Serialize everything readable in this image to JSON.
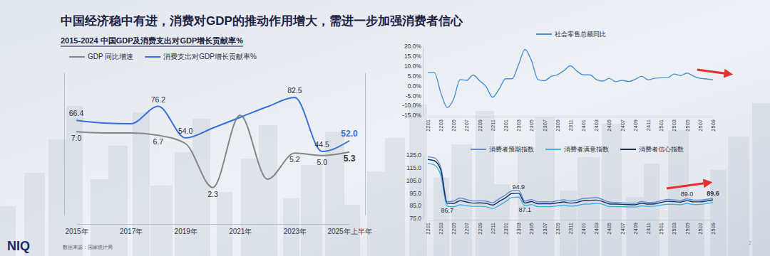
{
  "title": "中国经济稳中有进，消费对GDP的推动作用增大，需进一步加强消费者信心",
  "footer": {
    "logo": "NIQ",
    "source": "数据来源：国家统计局",
    "page": "2"
  },
  "chart_data": [
    {
      "type": "line",
      "title": "2015-2024 中国GDP及消费支出对GDP增长贡献率%",
      "categories": [
        "2015年",
        null,
        "2017年",
        null,
        "2019年",
        null,
        "2021年",
        null,
        "2023年",
        null,
        "2025年上半年"
      ],
      "series": [
        {
          "name": "GDP 同比增速",
          "color": "#858585",
          "values": [
            7.0,
            6.9,
            6.9,
            6.7,
            6.0,
            2.3,
            8.4,
            3.0,
            5.2,
            5.0,
            5.3
          ],
          "value_labels": [
            "7.0",
            null,
            null,
            "6.7",
            null,
            "2.3",
            null,
            null,
            "5.2",
            "5.0",
            "5.3"
          ]
        },
        {
          "name": "消费支出对GDP增长贡献率%",
          "color": "#3a6fdc",
          "axis": "y2",
          "values": [
            66.4,
            64.5,
            64.0,
            76.2,
            54.0,
            61.0,
            68.5,
            76.0,
            82.5,
            44.5,
            52.0
          ],
          "value_labels": [
            "66.4",
            null,
            null,
            "76.2",
            "54.0",
            null,
            null,
            null,
            "82.5",
            "44.5",
            "52.0"
          ]
        }
      ],
      "ylim": [
        0,
        12
      ],
      "y2lim": [
        0,
        100
      ],
      "tick_labels": "x",
      "data_labels": true,
      "legend": "top-left",
      "grid": false
    },
    {
      "type": "line",
      "categories": [
        "2201",
        null,
        "2203",
        null,
        "2205",
        null,
        "2207",
        null,
        "2209",
        null,
        "2211",
        null,
        "2301",
        null,
        "2303",
        null,
        "2305",
        null,
        "2307",
        null,
        "2309",
        null,
        "2311",
        null,
        "2401",
        null,
        "2403",
        null,
        "2405",
        null,
        "2407",
        null,
        "2409",
        null,
        "2411",
        null,
        "2501",
        null,
        "2503",
        null,
        "2505",
        null,
        "2507",
        null,
        "2509"
      ],
      "series": [
        {
          "name": "社会零售总额同比",
          "color": "#4a8fd8",
          "values": [
            6.7,
            6.7,
            -3.5,
            -11.1,
            -6.7,
            3.1,
            2.7,
            5.4,
            2.5,
            -0.5,
            -5.9,
            -1.8,
            3.5,
            3.5,
            10.6,
            18.4,
            12.7,
            3.1,
            2.5,
            4.6,
            5.5,
            7.6,
            10.1,
            7.4,
            5.5,
            5.5,
            3.1,
            2.3,
            3.7,
            2.0,
            2.7,
            2.1,
            3.2,
            4.8,
            3.0,
            3.7,
            4.0,
            4.0,
            5.9,
            5.1,
            6.4,
            4.8,
            3.7,
            3.4,
            3.0
          ]
        }
      ],
      "ylim": [
        -15,
        20
      ],
      "yticks": [
        {
          "value": 20,
          "label": "20.0%"
        },
        {
          "value": 15,
          "label": "15.0%"
        },
        {
          "value": 10,
          "label": "10.0%"
        },
        {
          "value": 5,
          "label": "5.0%"
        },
        {
          "value": 0,
          "label": "0.0%"
        },
        {
          "value": -5,
          "label": "-5.0%"
        },
        {
          "value": -10,
          "label": "-10.0%"
        },
        {
          "value": -15,
          "label": "-15.0%"
        }
      ],
      "legend": "top",
      "grid": false
    },
    {
      "type": "line",
      "categories": [
        "2201",
        null,
        "2203",
        null,
        "2205",
        null,
        "2207",
        null,
        "2209",
        null,
        "2211",
        null,
        "2301",
        null,
        "2303",
        null,
        "2305",
        null,
        "2307",
        null,
        "2309",
        null,
        "2311",
        null,
        "2401",
        null,
        "2403",
        null,
        "2405",
        null,
        "2407",
        null,
        "2409",
        null,
        "2411",
        null,
        "2501",
        null,
        "2503",
        null,
        "2505",
        null,
        "2507",
        null,
        "2509"
      ],
      "series": [
        {
          "name": "消费者预期指数",
          "color": "#5a8fd6",
          "values": [
            123.5,
            122.8,
            115.6,
            88.1,
            88.6,
            91.0,
            89.8,
            88.7,
            89.0,
            88.5,
            87.3,
            90.4,
            93.4,
            96.8,
            97.1,
            88.6,
            89.8,
            88.0,
            88.1,
            88.0,
            88.9,
            89.6,
            88.7,
            89.3,
            90.7,
            91.0,
            91.4,
            89.8,
            87.8,
            87.5,
            87.3,
            87.0,
            86.9,
            88.3,
            87.4,
            87.6,
            88.9,
            89.9,
            89.6,
            89.1,
            90.4,
            89.4,
            89.3,
            90.0,
            90.9
          ]
        },
        {
          "name": "消费者满意指数",
          "color": "#3fb0e6",
          "values": [
            118.5,
            117.2,
            109.2,
            84.5,
            84.1,
            85.7,
            85.0,
            84.5,
            84.5,
            84.2,
            82.7,
            85.2,
            88.1,
            91.5,
            91.7,
            84.9,
            85.9,
            84.2,
            84.2,
            84.3,
            84.9,
            85.4,
            84.6,
            85.1,
            86.1,
            86.3,
            86.7,
            86.0,
            84.3,
            84.2,
            84.1,
            84.0,
            83.9,
            84.8,
            84.4,
            84.6,
            85.4,
            86.1,
            86.0,
            85.8,
            86.8,
            85.9,
            86.0,
            86.6,
            87.6
          ]
        },
        {
          "name": "消费者信心指数",
          "color": "#1e2b5e",
          "values": [
            121.5,
            120.5,
            113.2,
            86.7,
            86.8,
            88.9,
            87.9,
            87.0,
            87.2,
            86.8,
            85.5,
            88.3,
            91.2,
            94.7,
            94.9,
            87.1,
            88.2,
            86.5,
            86.5,
            86.5,
            87.2,
            87.9,
            87.0,
            87.6,
            88.9,
            89.1,
            89.4,
            88.2,
            86.4,
            86.2,
            86.0,
            85.8,
            85.7,
            86.9,
            86.2,
            86.4,
            87.5,
            88.4,
            88.2,
            87.8,
            89.0,
            88.0,
            88.0,
            88.6,
            89.6
          ],
          "value_labels": [
            null,
            null,
            null,
            "86.7",
            null,
            null,
            null,
            null,
            null,
            null,
            null,
            null,
            null,
            null,
            "94.9",
            "87.1",
            null,
            null,
            null,
            null,
            null,
            null,
            null,
            null,
            null,
            null,
            null,
            null,
            null,
            null,
            null,
            null,
            null,
            null,
            null,
            null,
            null,
            null,
            null,
            null,
            "89.0",
            null,
            null,
            null,
            "89.6"
          ]
        }
      ],
      "ylim": [
        75,
        125
      ],
      "yticks": [
        {
          "value": 125,
          "label": "125.0"
        },
        {
          "value": 115,
          "label": "115.0"
        },
        {
          "value": 105,
          "label": "105.0"
        },
        {
          "value": 95,
          "label": "95.0"
        },
        {
          "value": 85,
          "label": "85.0"
        },
        {
          "value": 75,
          "label": "75.0"
        }
      ],
      "data_labels": true,
      "legend": "top",
      "grid": false
    }
  ]
}
